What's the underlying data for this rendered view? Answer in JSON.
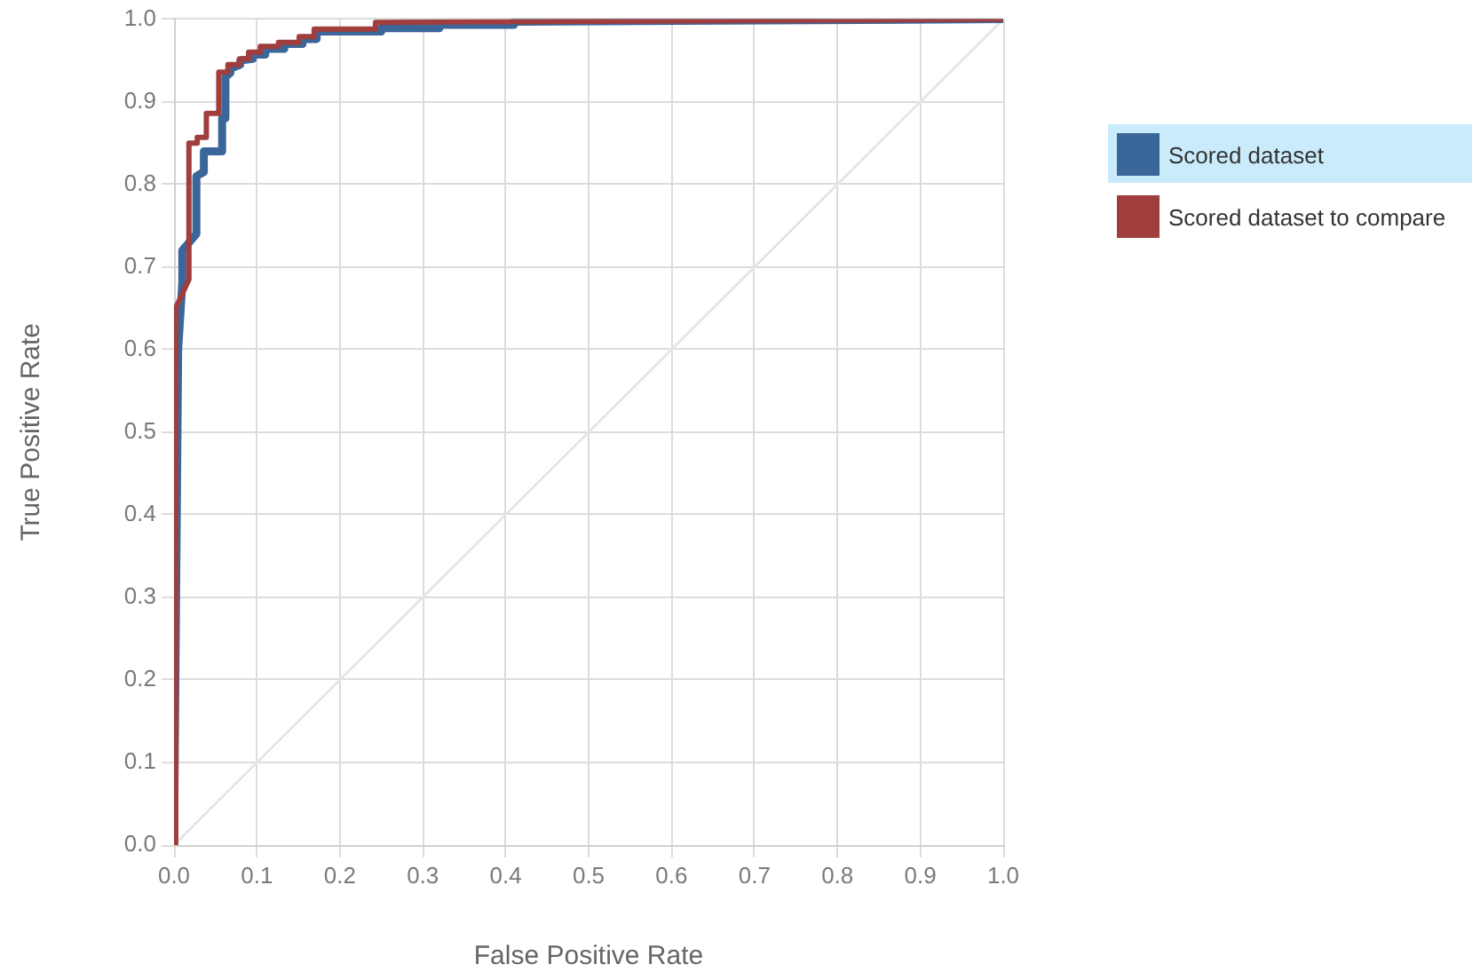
{
  "chart_data": {
    "type": "line",
    "xlabel": "False Positive Rate",
    "ylabel": "True Positive Rate",
    "xlim": [
      0,
      1
    ],
    "ylim": [
      0,
      1
    ],
    "xticks": [
      {
        "value": 0,
        "label": "0.0"
      },
      0.1,
      0.2,
      0.3,
      0.4,
      0.5,
      0.6,
      0.7,
      0.8,
      0.9,
      {
        "value": 1,
        "label": "1.0"
      }
    ],
    "yticks": [
      {
        "value": 0,
        "label": "0.0"
      },
      0.1,
      0.2,
      0.3,
      0.4,
      0.5,
      0.6,
      0.7,
      0.8,
      0.9,
      {
        "value": 1,
        "label": "1.0"
      }
    ],
    "grid": true,
    "legend": "right",
    "marker": "none",
    "line_style": "solid",
    "series": [
      {
        "type": "line",
        "color": "#e6e6e6",
        "x": [
          0,
          1
        ],
        "values": [
          0,
          1
        ]
      },
      {
        "name": "Scored dataset",
        "color": "#3b6699",
        "x": [
          0,
          0.005,
          0.01,
          0.01,
          0.027,
          0.027,
          0.036,
          0.036,
          0.058,
          0.058,
          0.062,
          0.062,
          0.068,
          0.068,
          0.08,
          0.08,
          0.095,
          0.095,
          0.11,
          0.11,
          0.133,
          0.133,
          0.155,
          0.155,
          0.172,
          0.172,
          0.25,
          0.25,
          0.32,
          0.32,
          0.41,
          0.41,
          1
        ],
        "values": [
          0,
          0.6,
          0.68,
          0.72,
          0.74,
          0.81,
          0.815,
          0.84,
          0.84,
          0.88,
          0.88,
          0.93,
          0.935,
          0.94,
          0.945,
          0.95,
          0.952,
          0.957,
          0.957,
          0.964,
          0.964,
          0.97,
          0.97,
          0.976,
          0.976,
          0.985,
          0.985,
          0.989,
          0.989,
          0.993,
          0.993,
          0.997,
          1
        ]
      },
      {
        "name": "Scored dataset to compare",
        "color": "#a03d3d",
        "x": [
          0,
          0.002,
          0.018,
          0.018,
          0.028,
          0.028,
          0.039,
          0.039,
          0.054,
          0.054,
          0.065,
          0.065,
          0.079,
          0.079,
          0.09,
          0.09,
          0.104,
          0.104,
          0.126,
          0.126,
          0.151,
          0.151,
          0.169,
          0.169,
          0.243,
          0.243,
          1
        ],
        "values": [
          0,
          0.65,
          0.685,
          0.85,
          0.85,
          0.857,
          0.857,
          0.886,
          0.886,
          0.936,
          0.936,
          0.945,
          0.945,
          0.952,
          0.952,
          0.96,
          0.96,
          0.967,
          0.967,
          0.972,
          0.972,
          0.979,
          0.979,
          0.988,
          0.988,
          0.996,
          1
        ]
      }
    ]
  }
}
